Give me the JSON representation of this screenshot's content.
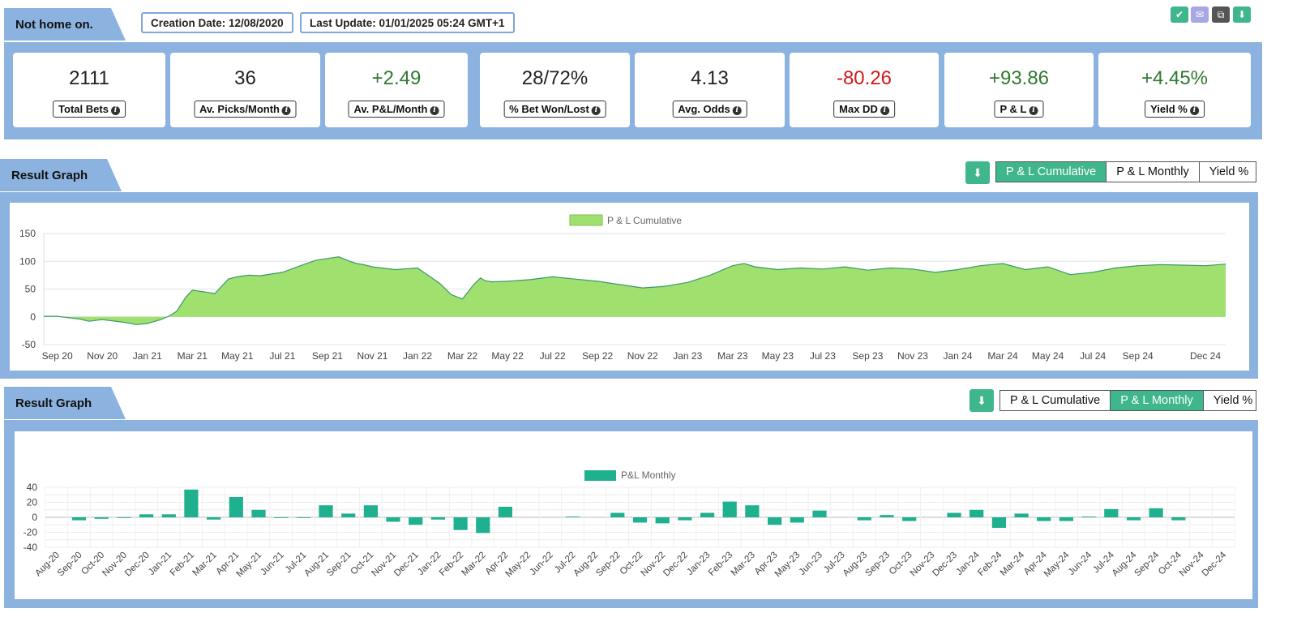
{
  "header": {
    "title": "Not home on.",
    "creation_date": "Creation Date: 12/08/2020",
    "last_update": "Last Update: 01/01/2025 05:24 GMT+1",
    "icon_buttons": [
      {
        "name": "check-icon",
        "glyph": "✔",
        "color": "#3fb68b"
      },
      {
        "name": "mail-icon",
        "glyph": "✉",
        "color": "#a9a6e6"
      },
      {
        "name": "copy-icon",
        "glyph": "⧉",
        "color": "#555555"
      },
      {
        "name": "download-icon",
        "glyph": "⬇",
        "color": "#3fb68b"
      }
    ]
  },
  "stats": [
    {
      "value": "2111",
      "label": "Total Bets",
      "tone": "neutral"
    },
    {
      "value": "36",
      "label": "Av. Picks/Month",
      "tone": "neutral"
    },
    {
      "value": "+2.49",
      "label": "Av. P&L/Month",
      "tone": "pos"
    },
    {
      "value": "28/72%",
      "label": "% Bet Won/Lost",
      "tone": "neutral"
    },
    {
      "value": "4.13",
      "label": "Avg. Odds",
      "tone": "neutral"
    },
    {
      "value": "-80.26",
      "label": "Max DD",
      "tone": "neg"
    },
    {
      "value": "+93.86",
      "label": "P & L",
      "tone": "pos"
    },
    {
      "value": "+4.45%",
      "label": "Yield %",
      "tone": "pos"
    }
  ],
  "graph1": {
    "section_title": "Result Graph",
    "download_glyph": "⬇",
    "tabs": [
      {
        "label": "P & L Cumulative",
        "active": true
      },
      {
        "label": "P & L Monthly",
        "active": false
      },
      {
        "label": "Yield %",
        "active": false
      }
    ]
  },
  "graph2": {
    "section_title": "Result Graph",
    "download_glyph": "⬇",
    "tabs": [
      {
        "label": "P & L Cumulative",
        "active": false
      },
      {
        "label": "P & L Monthly",
        "active": true
      },
      {
        "label": "Yield %",
        "active": false
      }
    ]
  },
  "chart_data": [
    {
      "type": "area",
      "legend": "P & L Cumulative",
      "legend_position": "top",
      "color": "#9fe06e",
      "line_color": "#3a9a6a",
      "ylim": [
        -50,
        150
      ],
      "yticks": [
        150,
        100,
        50,
        0,
        -50
      ],
      "xtick_labels": [
        "Sep 20",
        "Nov 20",
        "Jan 21",
        "Mar 21",
        "May 21",
        "Jul 21",
        "Sep 21",
        "Nov 21",
        "Jan 22",
        "Mar 22",
        "May 22",
        "Jul 22",
        "Sep 22",
        "Nov 22",
        "Jan 23",
        "Mar 23",
        "May 23",
        "Jul 23",
        "Sep 23",
        "Nov 23",
        "Jan 24",
        "Mar 24",
        "May 24",
        "Jul 24",
        "Sep 24",
        "Dec 24"
      ],
      "xtick_pos": [
        0,
        2,
        4,
        6,
        8,
        10,
        12,
        14,
        16,
        18,
        20,
        22,
        24,
        26,
        28,
        30,
        32,
        34,
        36,
        38,
        40,
        42,
        44,
        46,
        48,
        51
      ],
      "x_months": [
        -0.6,
        0,
        1,
        1.4,
        2,
        3,
        3.5,
        4,
        4.6,
        5,
        5.3,
        5.7,
        6,
        6.5,
        7,
        7.6,
        8,
        8.5,
        9,
        10,
        11,
        11.5,
        12,
        12.5,
        13,
        13.3,
        13.6,
        14,
        15,
        16,
        17,
        17.5,
        18,
        18.5,
        18.8,
        19,
        19.3,
        20,
        21,
        22,
        23,
        24,
        25,
        26,
        27,
        28,
        29,
        30,
        30.5,
        31,
        32,
        33,
        34,
        35,
        36,
        37,
        38,
        39,
        40,
        41,
        42,
        43,
        44,
        45,
        46,
        47,
        48,
        49,
        50,
        51,
        51.9
      ],
      "values": [
        1,
        1,
        -4,
        -8,
        -5,
        -10,
        -14,
        -12,
        -5,
        2,
        10,
        35,
        48,
        45,
        42,
        68,
        72,
        75,
        74,
        80,
        95,
        102,
        105,
        108,
        100,
        96,
        94,
        90,
        85,
        88,
        60,
        40,
        32,
        58,
        70,
        65,
        63,
        64,
        67,
        72,
        68,
        64,
        58,
        52,
        55,
        62,
        75,
        92,
        96,
        90,
        85,
        88,
        86,
        90,
        84,
        88,
        86,
        80,
        85,
        92,
        96,
        85,
        90,
        76,
        80,
        88,
        92,
        94,
        93,
        92,
        95
      ]
    },
    {
      "type": "bar",
      "legend": "P&L Monthly",
      "legend_position": "top",
      "color": "#1fb08f",
      "ylim": [
        -40,
        40
      ],
      "yticks": [
        40,
        20,
        0,
        -20,
        -40
      ],
      "categories": [
        "Aug-20",
        "Sep-20",
        "Oct-20",
        "Nov-20",
        "Dec-20",
        "Jan-21",
        "Feb-21",
        "Mar-21",
        "Apr-21",
        "May-21",
        "Jun-21",
        "Jul-21",
        "Aug-21",
        "Sep-21",
        "Oct-21",
        "Nov-21",
        "Dec-21",
        "Jan-22",
        "Feb-22",
        "Mar-22",
        "Apr-22",
        "May-22",
        "Jun-22",
        "Jul-22",
        "Aug-22",
        "Sep-22",
        "Oct-22",
        "Nov-22",
        "Dec-22",
        "Jan-23",
        "Feb-23",
        "Mar-23",
        "Apr-23",
        "May-23",
        "Jun-23",
        "Jul-23",
        "Aug-23",
        "Sep-23",
        "Oct-23",
        "Nov-23",
        "Dec-23",
        "Jan-24",
        "Feb-24",
        "Mar-24",
        "Apr-24",
        "May-24",
        "Jun-24",
        "Jul-24",
        "Aug-24",
        "Sep-24",
        "Oct-24",
        "Nov-24",
        "Dec-24"
      ],
      "values": [
        0,
        -4,
        -2,
        -1,
        4,
        4,
        37,
        -3,
        27,
        10,
        -1,
        -1,
        16,
        5,
        16,
        -6,
        -10,
        -3,
        -17,
        -21,
        14,
        0,
        0,
        1,
        0,
        6,
        -7,
        -8,
        -4,
        6,
        21,
        16,
        -10,
        -7,
        9,
        0,
        -4,
        3,
        -5,
        0,
        6,
        10,
        -14,
        5,
        -5,
        -5,
        1,
        11,
        -4,
        12,
        -4,
        0,
        0
      ]
    }
  ]
}
